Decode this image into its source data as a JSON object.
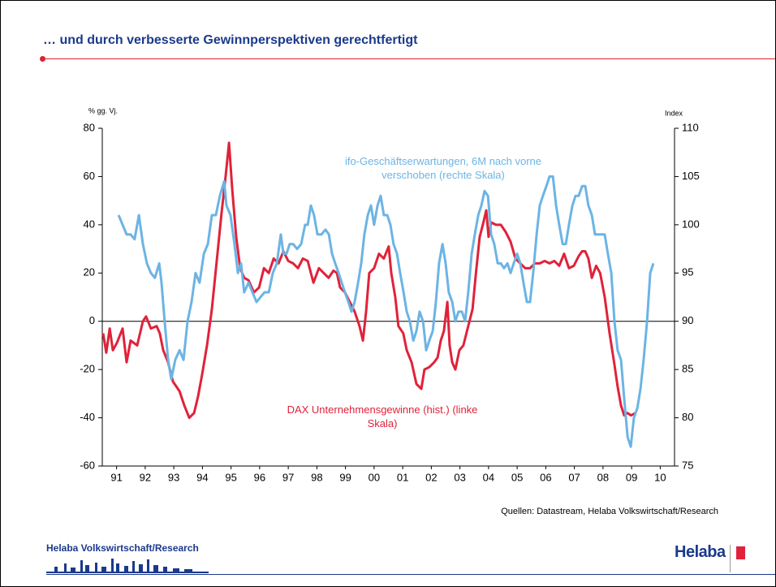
{
  "header": {
    "title": "… und durch verbesserte Gewinnperspektiven gerechtfertigt"
  },
  "chart_data": {
    "type": "line",
    "y_label": "% gg. Vj.",
    "y2_label": "Index",
    "xlim": [
      1991,
      2011
    ],
    "xticks": [
      {
        "value": 1991.5,
        "label": "91"
      },
      {
        "value": 1992.5,
        "label": "92"
      },
      {
        "value": 1993.5,
        "label": "93"
      },
      {
        "value": 1994.5,
        "label": "94"
      },
      {
        "value": 1995.5,
        "label": "95"
      },
      {
        "value": 1996.5,
        "label": "96"
      },
      {
        "value": 1997.5,
        "label": "97"
      },
      {
        "value": 1998.5,
        "label": "98"
      },
      {
        "value": 1999.5,
        "label": "99"
      },
      {
        "value": 2000.5,
        "label": "00"
      },
      {
        "value": 2001.5,
        "label": "01"
      },
      {
        "value": 2002.5,
        "label": "02"
      },
      {
        "value": 2003.5,
        "label": "03"
      },
      {
        "value": 2004.5,
        "label": "04"
      },
      {
        "value": 2005.5,
        "label": "05"
      },
      {
        "value": 2006.5,
        "label": "06"
      },
      {
        "value": 2007.5,
        "label": "07"
      },
      {
        "value": 2008.5,
        "label": "08"
      },
      {
        "value": 2009.5,
        "label": "09"
      },
      {
        "value": 2010.5,
        "label": "10"
      }
    ],
    "ylim": [
      -60,
      80
    ],
    "yticks": [
      -60,
      -40,
      -20,
      0,
      20,
      40,
      60,
      80
    ],
    "y2lim": [
      75,
      110
    ],
    "y2ticks": [
      75,
      80,
      85,
      90,
      95,
      100,
      105,
      110
    ],
    "grid": false,
    "series": [
      {
        "name": "DAX Unternehmensgewinne (hist.) (linke Skala)",
        "color": "#e0223a",
        "axis": "y",
        "x": [
          1991.03,
          1991.14,
          1991.26,
          1991.37,
          1991.51,
          1991.71,
          1991.85,
          1991.99,
          1992.22,
          1992.42,
          1992.53,
          1992.7,
          1992.9,
          1993.01,
          1993.13,
          1993.3,
          1993.47,
          1993.7,
          1993.87,
          1994.04,
          1994.21,
          1994.35,
          1994.49,
          1994.66,
          1994.83,
          1995.0,
          1995.17,
          1995.31,
          1995.43,
          1995.54,
          1995.68,
          1995.82,
          1995.96,
          1996.11,
          1996.3,
          1996.48,
          1996.65,
          1996.82,
          1996.99,
          1997.16,
          1997.33,
          1997.5,
          1997.67,
          1997.84,
          1998.01,
          1998.18,
          1998.38,
          1998.57,
          1998.74,
          1998.91,
          1999.08,
          1999.2,
          1999.31,
          1999.48,
          1999.65,
          1999.82,
          1999.99,
          2000.11,
          2000.22,
          2000.33,
          2000.5,
          2000.67,
          2000.84,
          2001.01,
          2001.1,
          2001.24,
          2001.35,
          2001.52,
          2001.64,
          2001.81,
          2001.98,
          2002.15,
          2002.26,
          2002.43,
          2002.6,
          2002.72,
          2002.83,
          2002.94,
          2003.06,
          2003.14,
          2003.23,
          2003.34,
          2003.48,
          2003.62,
          2003.79,
          2003.94,
          2004.06,
          2004.19,
          2004.3,
          2004.42,
          2004.5,
          2004.59,
          2004.76,
          2004.93,
          2005.1,
          2005.27,
          2005.44,
          2005.61,
          2005.78,
          2005.95,
          2006.12,
          2006.29,
          2006.46,
          2006.63,
          2006.8,
          2006.97,
          2007.14,
          2007.31,
          2007.48,
          2007.65,
          2007.77,
          2007.88,
          2007.99,
          2008.11,
          2008.26,
          2008.4,
          2008.56,
          2008.73,
          2008.9,
          2009.01,
          2009.13,
          2009.24,
          2009.35,
          2009.48,
          2009.64
        ],
        "values": [
          -5,
          -13,
          -3,
          -12,
          -9,
          -3,
          -17,
          -8,
          -10,
          0,
          2,
          -3,
          -2,
          -5,
          -12,
          -17,
          -25,
          -29,
          -35,
          -40,
          -38,
          -31,
          -22,
          -10,
          5,
          25,
          45,
          60,
          74,
          55,
          35,
          22,
          18,
          17,
          12,
          14,
          22,
          20,
          26,
          24,
          29,
          25,
          24,
          22,
          26,
          25,
          16,
          22,
          20,
          18,
          21,
          20,
          14,
          12,
          8,
          4,
          -2,
          -8,
          4,
          20,
          22,
          28,
          26,
          31,
          20,
          10,
          -2,
          -5,
          -12,
          -17,
          -26,
          -28,
          -20,
          -19,
          -17,
          -15,
          -8,
          -4,
          8,
          -10,
          -17,
          -20,
          -12,
          -10,
          -2,
          5,
          20,
          35,
          40,
          46,
          35,
          41,
          40,
          40,
          37,
          33,
          26,
          24,
          22,
          22,
          24,
          24,
          25,
          24,
          25,
          23,
          28,
          22,
          23,
          27,
          29,
          29,
          26,
          18,
          23,
          20,
          10,
          -5,
          -18,
          -27,
          -35,
          -39,
          -38,
          -39,
          -38
        ]
      },
      {
        "name": "ifo-Geschäftserwartungen, 6M nach vorne verschoben (rechte Skala)",
        "color": "#6cb4e4",
        "axis": "y2",
        "x": [
          1991.57,
          1991.71,
          1991.85,
          1991.99,
          1992.13,
          1992.28,
          1992.42,
          1992.56,
          1992.7,
          1992.84,
          1992.99,
          1993.07,
          1993.18,
          1993.3,
          1993.41,
          1993.55,
          1993.7,
          1993.84,
          1993.98,
          1994.12,
          1994.26,
          1994.4,
          1994.55,
          1994.69,
          1994.83,
          1994.97,
          1995.11,
          1995.26,
          1995.34,
          1995.48,
          1995.62,
          1995.74,
          1995.85,
          1995.96,
          1996.11,
          1996.25,
          1996.39,
          1996.53,
          1996.67,
          1996.82,
          1996.96,
          1997.1,
          1997.24,
          1997.33,
          1997.44,
          1997.55,
          1997.67,
          1997.81,
          1997.95,
          1998.09,
          1998.18,
          1998.29,
          1998.4,
          1998.52,
          1998.66,
          1998.8,
          1998.92,
          1999.03,
          1999.14,
          1999.26,
          1999.37,
          1999.48,
          1999.6,
          1999.71,
          1999.82,
          1999.94,
          2000.05,
          2000.16,
          2000.28,
          2000.39,
          2000.5,
          2000.62,
          2000.73,
          2000.84,
          2000.96,
          2001.07,
          2001.18,
          2001.3,
          2001.41,
          2001.53,
          2001.64,
          2001.75,
          2001.87,
          2001.98,
          2002.09,
          2002.21,
          2002.32,
          2002.43,
          2002.55,
          2002.66,
          2002.77,
          2002.89,
          2003.0,
          2003.11,
          2003.23,
          2003.34,
          2003.45,
          2003.57,
          2003.68,
          2003.79,
          2003.91,
          2004.02,
          2004.14,
          2004.25,
          2004.36,
          2004.48,
          2004.59,
          2004.7,
          2004.82,
          2004.93,
          2005.04,
          2005.16,
          2005.27,
          2005.38,
          2005.5,
          2005.61,
          2005.72,
          2005.84,
          2005.95,
          2006.06,
          2006.18,
          2006.29,
          2006.4,
          2006.52,
          2006.63,
          2006.75,
          2006.86,
          2006.97,
          2007.09,
          2007.2,
          2007.31,
          2007.43,
          2007.54,
          2007.65,
          2007.77,
          2007.88,
          2007.99,
          2008.11,
          2008.22,
          2008.33,
          2008.45,
          2008.56,
          2008.67,
          2008.79,
          2008.9,
          2009.01,
          2009.13,
          2009.24,
          2009.36,
          2009.47,
          2009.58,
          2009.7,
          2009.81,
          2009.92,
          2010.04,
          2010.15,
          2010.26
        ],
        "values": [
          101,
          100,
          99,
          99,
          98.5,
          101,
          98,
          96,
          95,
          94.5,
          96,
          94,
          90,
          86,
          84,
          86,
          87,
          86,
          90,
          92,
          95,
          94,
          97,
          98,
          101,
          101,
          103,
          104.5,
          102,
          101,
          98,
          95,
          96,
          93,
          94,
          93,
          92,
          92.5,
          93,
          93,
          95,
          96,
          99,
          97,
          97,
          98,
          98,
          97.5,
          98,
          100,
          100,
          102,
          101,
          99,
          99,
          99.5,
          99,
          97,
          96,
          95,
          94,
          93,
          92,
          91,
          92,
          94,
          96,
          99,
          101,
          102,
          100,
          102,
          103,
          101,
          101,
          100,
          98,
          97,
          95,
          93,
          91,
          90,
          88,
          89,
          91,
          90,
          87,
          88,
          89,
          92,
          96,
          98,
          96,
          93,
          92,
          90,
          91,
          91,
          90,
          93,
          97,
          99,
          101,
          102,
          103.5,
          103,
          99,
          98,
          96,
          96,
          95.5,
          96,
          95,
          96,
          97,
          96,
          94,
          92,
          92,
          95,
          99,
          102,
          103,
          104,
          105,
          105,
          102,
          100,
          98,
          98,
          100,
          102,
          103,
          103,
          104,
          104,
          102,
          101,
          99,
          99,
          99,
          99,
          97,
          95,
          90,
          87,
          86,
          82,
          78,
          77,
          80,
          81,
          83,
          86,
          90,
          95,
          96
        ]
      }
    ]
  },
  "source": "Quellen: Datastream, Helaba Volkswirtschaft/Research",
  "footer": {
    "text": "Helaba Volkswirtschaft/Research",
    "logo": "Helaba"
  }
}
